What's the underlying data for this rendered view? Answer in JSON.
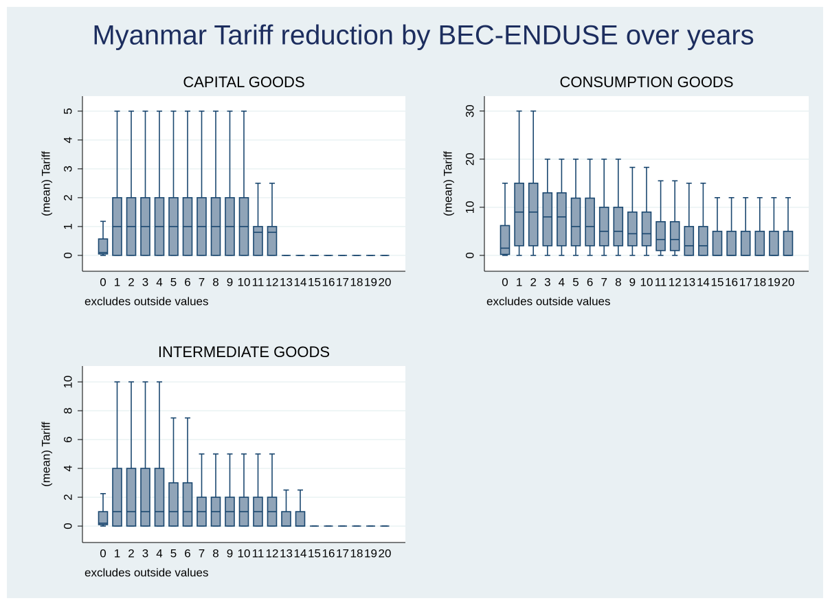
{
  "title": "Myanmar Tariff reduction by BEC-ENDUSE over years",
  "chart_data": [
    {
      "type": "box",
      "title": "CAPITAL GOODS",
      "y_label": "(mean) Tariff",
      "note": "excludes outside values",
      "categories": [
        "0",
        "1",
        "2",
        "3",
        "4",
        "5",
        "6",
        "7",
        "8",
        "9",
        "10",
        "11",
        "12",
        "13",
        "14",
        "15",
        "16",
        "17",
        "18",
        "19",
        "20"
      ],
      "whisker_low": [
        0,
        0,
        0,
        0,
        0,
        0,
        0,
        0,
        0,
        0,
        0,
        0,
        0,
        0,
        0,
        0,
        0,
        0,
        0,
        0,
        0
      ],
      "q1": [
        0.05,
        0,
        0,
        0,
        0,
        0,
        0,
        0,
        0,
        0,
        0,
        0,
        0,
        0,
        0,
        0,
        0,
        0,
        0,
        0,
        0
      ],
      "median": [
        0.1,
        1,
        1,
        1,
        1,
        1,
        1,
        1,
        1,
        1,
        1,
        0.8,
        0.8,
        0,
        0,
        0,
        0,
        0,
        0,
        0,
        0
      ],
      "q3": [
        0.57,
        2,
        2,
        2,
        2,
        2,
        2,
        2,
        2,
        2,
        2,
        1,
        1,
        0,
        0,
        0,
        0,
        0,
        0,
        0,
        0
      ],
      "whisker_high": [
        1.18,
        5,
        5,
        5,
        5,
        5,
        5,
        5,
        5,
        5,
        5,
        2.5,
        2.5,
        0,
        0,
        0,
        0,
        0,
        0,
        0,
        0
      ],
      "color": "#1a476f",
      "fill_color": "#90a4b8",
      "ylim": [
        -0.55,
        5.52
      ],
      "yticks": [
        0,
        1,
        2,
        3,
        4,
        5
      ],
      "grid": true
    },
    {
      "type": "box",
      "title": "CONSUMPTION GOODS",
      "y_label": "(mean) Tariff",
      "note": "excludes outside values",
      "categories": [
        "0",
        "1",
        "2",
        "3",
        "4",
        "5",
        "6",
        "7",
        "8",
        "9",
        "10",
        "11",
        "12",
        "13",
        "14",
        "15",
        "16",
        "17",
        "18",
        "19",
        "20"
      ],
      "whisker_low": [
        0,
        0,
        0,
        0,
        0,
        0,
        0,
        0,
        0,
        0,
        0,
        0,
        0,
        0,
        0,
        0,
        0,
        0,
        0,
        0,
        0
      ],
      "q1": [
        0.2,
        2,
        2,
        2,
        2,
        2,
        2,
        2,
        2,
        2,
        2,
        1,
        1,
        0,
        0,
        0,
        0,
        0,
        0,
        0,
        0
      ],
      "median": [
        1.5,
        9,
        9,
        8,
        8,
        6,
        6,
        5,
        5,
        4.5,
        4.5,
        3.3,
        3.3,
        2,
        2,
        0,
        0,
        0,
        0,
        0,
        0
      ],
      "q3": [
        6.2,
        15,
        15,
        13,
        13,
        11.9,
        11.9,
        10,
        10,
        9,
        9,
        7,
        7,
        6,
        6,
        5,
        5,
        5,
        5,
        5,
        5
      ],
      "whisker_high": [
        15,
        30,
        30,
        20,
        20,
        20,
        20,
        20,
        20,
        18.3,
        18.3,
        15.5,
        15.5,
        15,
        15,
        12,
        12,
        12,
        12,
        12,
        12
      ],
      "color": "#1a476f",
      "fill_color": "#90a4b8",
      "ylim": [
        -3.3,
        33.1
      ],
      "yticks": [
        0,
        10,
        20,
        30
      ],
      "grid": true
    },
    {
      "type": "box",
      "title": "INTERMEDIATE GOODS",
      "y_label": "(mean) Tariff",
      "note": "excludes outside values",
      "categories": [
        "0",
        "1",
        "2",
        "3",
        "4",
        "5",
        "6",
        "7",
        "8",
        "9",
        "10",
        "11",
        "12",
        "13",
        "14",
        "15",
        "16",
        "17",
        "18",
        "19",
        "20"
      ],
      "whisker_low": [
        0,
        0,
        0,
        0,
        0,
        0,
        0,
        0,
        0,
        0,
        0,
        0,
        0,
        0,
        0,
        0,
        0,
        0,
        0,
        0,
        0
      ],
      "q1": [
        0.1,
        0,
        0,
        0,
        0,
        0,
        0,
        0,
        0,
        0,
        0,
        0,
        0,
        0,
        0,
        0,
        0,
        0,
        0,
        0,
        0
      ],
      "median": [
        0.2,
        1,
        1,
        1,
        1,
        1,
        1,
        1,
        1,
        1,
        1,
        1,
        1,
        0,
        0,
        0,
        0,
        0,
        0,
        0,
        0
      ],
      "q3": [
        1,
        4,
        4,
        4,
        4,
        3,
        3,
        2,
        2,
        2,
        2,
        2,
        2,
        1,
        1,
        0,
        0,
        0,
        0,
        0,
        0
      ],
      "whisker_high": [
        2.25,
        10,
        10,
        10,
        10,
        7.5,
        7.5,
        5,
        5,
        5,
        5,
        5,
        5,
        2.5,
        2.5,
        0,
        0,
        0,
        0,
        0,
        0
      ],
      "color": "#1a476f",
      "fill_color": "#90a4b8",
      "ylim": [
        -1.14,
        11.1
      ],
      "yticks": [
        0,
        2,
        4,
        6,
        8,
        10
      ],
      "grid": true
    }
  ]
}
